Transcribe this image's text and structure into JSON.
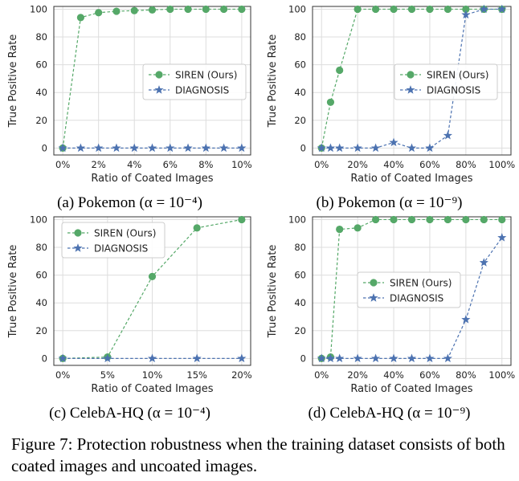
{
  "chart_data": [
    {
      "type": "line",
      "subcaption": "(a) Pokemon (α = 10⁻⁴)",
      "xlabel": "Ratio of Coated Images",
      "ylabel": "True Positive Rate",
      "xlim": [
        -0.5,
        10.5
      ],
      "ylim": [
        -5,
        102
      ],
      "xticks": [
        0,
        2,
        4,
        6,
        8,
        10
      ],
      "xtick_labels": [
        "0%",
        "2%",
        "4%",
        "6%",
        "8%",
        "10%"
      ],
      "yticks": [
        0,
        20,
        40,
        60,
        80,
        100
      ],
      "ytick_labels": [
        "0",
        "20",
        "40",
        "60",
        "80",
        "100"
      ],
      "grid": true,
      "legend": "right",
      "series": [
        {
          "name": "SIREN (Ours)",
          "color": "#55a868",
          "marker": "circle",
          "x": [
            0,
            1,
            2,
            3,
            4,
            5,
            6,
            7,
            8,
            9,
            10
          ],
          "y": [
            0,
            94,
            97.5,
            98.5,
            99,
            99.5,
            100,
            100,
            100,
            100,
            100
          ]
        },
        {
          "name": "DIAGNOSIS",
          "color": "#4c72b0",
          "marker": "star",
          "x": [
            0,
            1,
            2,
            3,
            4,
            5,
            6,
            7,
            8,
            9,
            10
          ],
          "y": [
            0,
            0,
            0,
            0,
            0,
            0,
            0,
            0,
            0,
            0,
            0
          ]
        }
      ]
    },
    {
      "type": "line",
      "subcaption": "(b) Pokemon (α = 10⁻⁹)",
      "xlabel": "Ratio of Coated Images",
      "ylabel": "True Positive Rate",
      "xlim": [
        -5,
        105
      ],
      "ylim": [
        -5,
        102
      ],
      "xticks": [
        0,
        20,
        40,
        60,
        80,
        100
      ],
      "xtick_labels": [
        "0%",
        "20%",
        "40%",
        "60%",
        "80%",
        "100%"
      ],
      "yticks": [
        0,
        20,
        40,
        60,
        80,
        100
      ],
      "ytick_labels": [
        "0",
        "20",
        "40",
        "60",
        "80",
        "100"
      ],
      "grid": true,
      "legend": "right",
      "series": [
        {
          "name": "SIREN (Ours)",
          "color": "#55a868",
          "marker": "circle",
          "x": [
            0,
            5,
            10,
            20,
            30,
            40,
            50,
            60,
            70,
            80,
            90,
            100
          ],
          "y": [
            0,
            33,
            56,
            100,
            100,
            100,
            100,
            100,
            100,
            100,
            100,
            100
          ]
        },
        {
          "name": "DIAGNOSIS",
          "color": "#4c72b0",
          "marker": "star",
          "x": [
            0,
            5,
            10,
            20,
            30,
            40,
            50,
            60,
            70,
            80,
            90,
            100
          ],
          "y": [
            0,
            0,
            0,
            0,
            0,
            4,
            0,
            0,
            9,
            96,
            100,
            100
          ]
        }
      ]
    },
    {
      "type": "line",
      "subcaption": "(c) CelebA-HQ (α = 10⁻⁴)",
      "xlabel": "Ratio of Coated Images",
      "ylabel": "True Positive Rate",
      "xlim": [
        -1,
        21
      ],
      "ylim": [
        -5,
        102
      ],
      "xticks": [
        0,
        5,
        10,
        15,
        20
      ],
      "xtick_labels": [
        "0%",
        "5%",
        "10%",
        "15%",
        "20%"
      ],
      "yticks": [
        0,
        20,
        40,
        60,
        80,
        100
      ],
      "ytick_labels": [
        "0",
        "20",
        "40",
        "60",
        "80",
        "100"
      ],
      "grid": true,
      "legend": "top-left",
      "series": [
        {
          "name": "SIREN (Ours)",
          "color": "#55a868",
          "marker": "circle",
          "x": [
            0,
            5,
            10,
            15,
            20
          ],
          "y": [
            0,
            1,
            59,
            94,
            100
          ]
        },
        {
          "name": "DIAGNOSIS",
          "color": "#4c72b0",
          "marker": "star",
          "x": [
            0,
            5,
            10,
            15,
            20
          ],
          "y": [
            0,
            0,
            0,
            0,
            0
          ]
        }
      ]
    },
    {
      "type": "line",
      "subcaption": "(d) CelebA-HQ (α = 10⁻⁹)",
      "xlabel": "Ratio of Coated Images",
      "ylabel": "True Positive Rate",
      "xlim": [
        -5,
        105
      ],
      "ylim": [
        -5,
        102
      ],
      "xticks": [
        0,
        20,
        40,
        60,
        80,
        100
      ],
      "xtick_labels": [
        "0%",
        "20%",
        "40%",
        "60%",
        "80%",
        "100%"
      ],
      "yticks": [
        0,
        20,
        40,
        60,
        80,
        100
      ],
      "ytick_labels": [
        "0",
        "20",
        "40",
        "60",
        "80",
        "100"
      ],
      "grid": true,
      "legend": "center",
      "series": [
        {
          "name": "SIREN (Ours)",
          "color": "#55a868",
          "marker": "circle",
          "x": [
            0,
            5,
            10,
            20,
            30,
            40,
            50,
            60,
            70,
            80,
            90,
            100
          ],
          "y": [
            0,
            1,
            93,
            94,
            100,
            100,
            100,
            100,
            100,
            100,
            100,
            100
          ]
        },
        {
          "name": "DIAGNOSIS",
          "color": "#4c72b0",
          "marker": "star",
          "x": [
            0,
            5,
            10,
            20,
            30,
            40,
            50,
            60,
            70,
            80,
            90,
            100
          ],
          "y": [
            0,
            0,
            0,
            0,
            0,
            0,
            0,
            0,
            0,
            28,
            69,
            87
          ]
        }
      ]
    }
  ],
  "figure_caption": "Figure 7: Protection robustness when the training dataset consists of both coated images and uncoated images."
}
